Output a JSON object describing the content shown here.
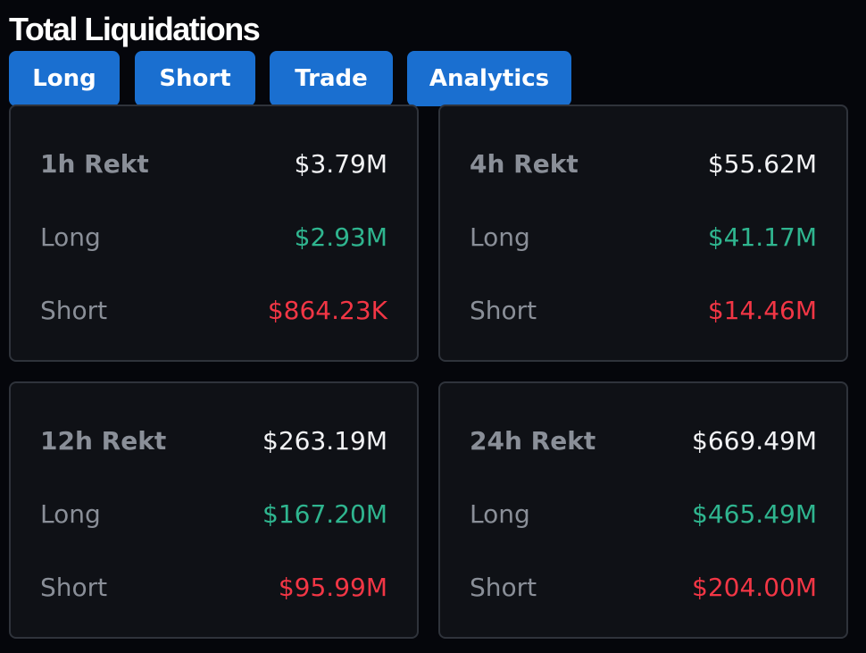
{
  "header": {
    "title": "Total Liquidations"
  },
  "tabs": [
    "Long",
    "Short",
    "Trade",
    "Analytics"
  ],
  "cards": [
    {
      "label": "1h Rekt",
      "total": "$3.79M",
      "long_label": "Long",
      "long": "$2.93M",
      "short_label": "Short",
      "short": "$864.23K"
    },
    {
      "label": "4h Rekt",
      "total": "$55.62M",
      "long_label": "Long",
      "long": "$41.17M",
      "short_label": "Short",
      "short": "$14.46M"
    },
    {
      "label": "12h Rekt",
      "total": "$263.19M",
      "long_label": "Long",
      "long": "$167.20M",
      "short_label": "Short",
      "short": "$95.99M"
    },
    {
      "label": "24h Rekt",
      "total": "$669.49M",
      "long_label": "Long",
      "long": "$465.49M",
      "short_label": "Short",
      "short": "$204.00M"
    }
  ]
}
